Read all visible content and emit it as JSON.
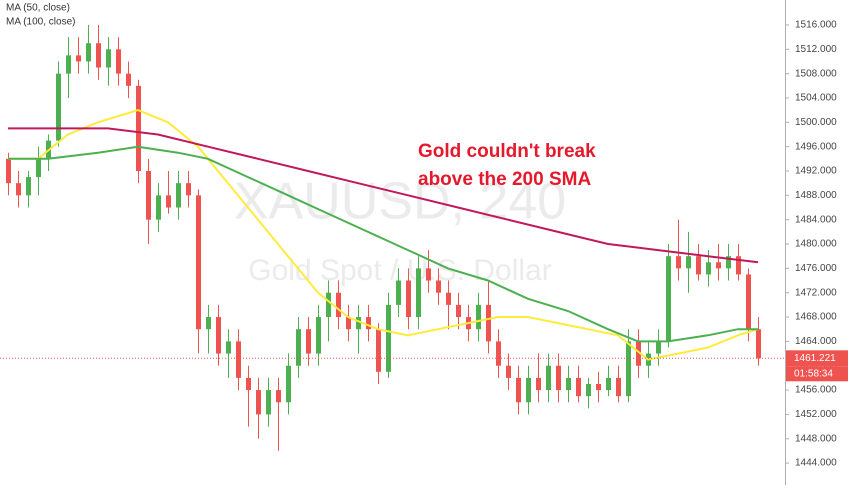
{
  "chart_data": {
    "type": "candlestick",
    "legend": [
      "MA (50, close)",
      "MA (100, close)"
    ],
    "watermark": "XAUUSD, 240",
    "watermark_subtitle": "Gold Spot / U.S. Dollar",
    "annotation": [
      "Gold couldn't break",
      "above the 200 SMA"
    ],
    "annotation_color": "#e5192c",
    "up_color": "#4caf50",
    "down_color": "#ef5350",
    "grid": false,
    "ylim": [
      1440.4,
      1520.1
    ],
    "yticks": [
      {
        "value": 1444,
        "label": "1444.000"
      },
      {
        "value": 1448,
        "label": "1448.000"
      },
      {
        "value": 1452,
        "label": "1452.000"
      },
      {
        "value": 1456,
        "label": "1456.000"
      },
      {
        "value": 1460,
        "label": "1460.000"
      },
      {
        "value": 1464,
        "label": "1464.000"
      },
      {
        "value": 1468,
        "label": "1468.000"
      },
      {
        "value": 1472,
        "label": "1472.000"
      },
      {
        "value": 1476,
        "label": "1476.000"
      },
      {
        "value": 1480,
        "label": "1480.000"
      },
      {
        "value": 1484,
        "label": "1484.000"
      },
      {
        "value": 1488,
        "label": "1488.000"
      },
      {
        "value": 1492,
        "label": "1492.000"
      },
      {
        "value": 1496,
        "label": "1496.000"
      },
      {
        "value": 1500,
        "label": "1500.000"
      },
      {
        "value": 1504,
        "label": "1504.000"
      },
      {
        "value": 1508,
        "label": "1508.000"
      },
      {
        "value": 1512,
        "label": "1512.000"
      },
      {
        "value": 1516,
        "label": "1516.000"
      }
    ],
    "candles": {
      "open": [
        1494,
        1490,
        1488,
        1491,
        1494,
        1497,
        1508,
        1511,
        1510,
        1513,
        1509,
        1512,
        1508,
        1506,
        1492,
        1484,
        1488,
        1486,
        1490,
        1488,
        1466,
        1468,
        1462,
        1464,
        1458,
        1456,
        1452,
        1456,
        1454,
        1460,
        1466,
        1462,
        1468,
        1472,
        1468,
        1466,
        1468,
        1466,
        1459,
        1470,
        1474,
        1468,
        1476,
        1474,
        1472,
        1470,
        1468,
        1466,
        1470,
        1464,
        1460,
        1458,
        1454,
        1458,
        1456,
        1460,
        1456,
        1458,
        1455,
        1457,
        1456,
        1458,
        1455,
        1464,
        1460,
        1462,
        1464,
        1478,
        1476,
        1478,
        1475,
        1477,
        1476,
        1478,
        1475,
        1466
      ],
      "high": [
        1495,
        1492,
        1492,
        1496,
        1498,
        1510,
        1514,
        1514,
        1516,
        1516,
        1514,
        1514,
        1510,
        1507,
        1494,
        1490,
        1492,
        1492,
        1492,
        1489,
        1470,
        1470,
        1466,
        1466,
        1460,
        1458,
        1458,
        1458,
        1462,
        1468,
        1468,
        1470,
        1474,
        1474,
        1470,
        1470,
        1470,
        1467,
        1472,
        1476,
        1476,
        1478,
        1479,
        1476,
        1474,
        1472,
        1470,
        1472,
        1474,
        1466,
        1462,
        1460,
        1460,
        1462,
        1462,
        1462,
        1460,
        1460,
        1458,
        1459,
        1460,
        1460,
        1466,
        1466,
        1464,
        1466,
        1480,
        1484,
        1482,
        1480,
        1479,
        1480,
        1480,
        1480,
        1476,
        1468
      ],
      "low": [
        1488,
        1486,
        1486,
        1488,
        1492,
        1496,
        1504,
        1508,
        1508,
        1507,
        1506,
        1506,
        1504,
        1490,
        1480,
        1482,
        1485,
        1484,
        1486,
        1462,
        1462,
        1460,
        1458,
        1456,
        1450,
        1448,
        1450,
        1446,
        1452,
        1458,
        1460,
        1460,
        1464,
        1466,
        1464,
        1462,
        1464,
        1457,
        1458,
        1468,
        1466,
        1466,
        1472,
        1470,
        1466,
        1466,
        1464,
        1464,
        1462,
        1458,
        1456,
        1452,
        1452,
        1454,
        1454,
        1454,
        1454,
        1454,
        1453,
        1454,
        1455,
        1454,
        1454,
        1458,
        1458,
        1460,
        1463,
        1474,
        1472,
        1474,
        1473,
        1474,
        1474,
        1474,
        1464,
        1460
      ],
      "close": [
        1490,
        1488,
        1491,
        1494,
        1497,
        1508,
        1511,
        1510,
        1513,
        1509,
        1512,
        1508,
        1506,
        1492,
        1484,
        1488,
        1486,
        1490,
        1488,
        1466,
        1468,
        1462,
        1464,
        1458,
        1456,
        1452,
        1456,
        1454,
        1460,
        1466,
        1462,
        1468,
        1472,
        1468,
        1466,
        1468,
        1466,
        1459,
        1470,
        1474,
        1468,
        1476,
        1474,
        1472,
        1470,
        1468,
        1466,
        1470,
        1464,
        1460,
        1458,
        1454,
        1458,
        1456,
        1460,
        1456,
        1458,
        1455,
        1457,
        1456,
        1458,
        1455,
        1464,
        1460,
        1462,
        1464,
        1478,
        1476,
        1478,
        1475,
        1477,
        1476,
        1478,
        1475,
        1466,
        1461.221
      ]
    },
    "series": [
      {
        "name": "MA (50, close)",
        "color": "#ffeb3b",
        "x": [
          0,
          3,
          6,
          9,
          13,
          16,
          19,
          22,
          25,
          28,
          31,
          34,
          37,
          40,
          43,
          46,
          49,
          52,
          55,
          58,
          61,
          64,
          67,
          70,
          73,
          75
        ],
        "values": [
          1494,
          1494,
          1498,
          1500,
          1502,
          1500,
          1496,
          1490,
          1484,
          1478,
          1472,
          1468,
          1466,
          1465,
          1466,
          1467,
          1468,
          1468,
          1467,
          1466,
          1465,
          1461,
          1462,
          1463,
          1465,
          1466
        ]
      },
      {
        "name": "MA (100, close)",
        "color": "#4caf50",
        "x": [
          0,
          4,
          9,
          13,
          17,
          20,
          24,
          28,
          32,
          36,
          40,
          44,
          48,
          52,
          56,
          60,
          63,
          66,
          70,
          73,
          75
        ],
        "values": [
          1494,
          1494,
          1495,
          1496,
          1495,
          1494,
          1491,
          1488,
          1485,
          1482,
          1479,
          1476,
          1474,
          1471,
          1469,
          1466,
          1464,
          1464,
          1465,
          1466,
          1466
        ]
      },
      {
        "color": "#c2185b",
        "x": [
          0,
          5,
          10,
          15,
          20,
          25,
          30,
          35,
          40,
          45,
          50,
          55,
          60,
          65,
          70,
          75
        ],
        "values": [
          1499,
          1499,
          1499,
          1498,
          1496,
          1494,
          1492,
          1490,
          1488,
          1486,
          1484,
          1482,
          1480,
          1479,
          1478,
          1477
        ]
      }
    ],
    "last_price": 1461.221,
    "countdown": "01:58:34"
  }
}
